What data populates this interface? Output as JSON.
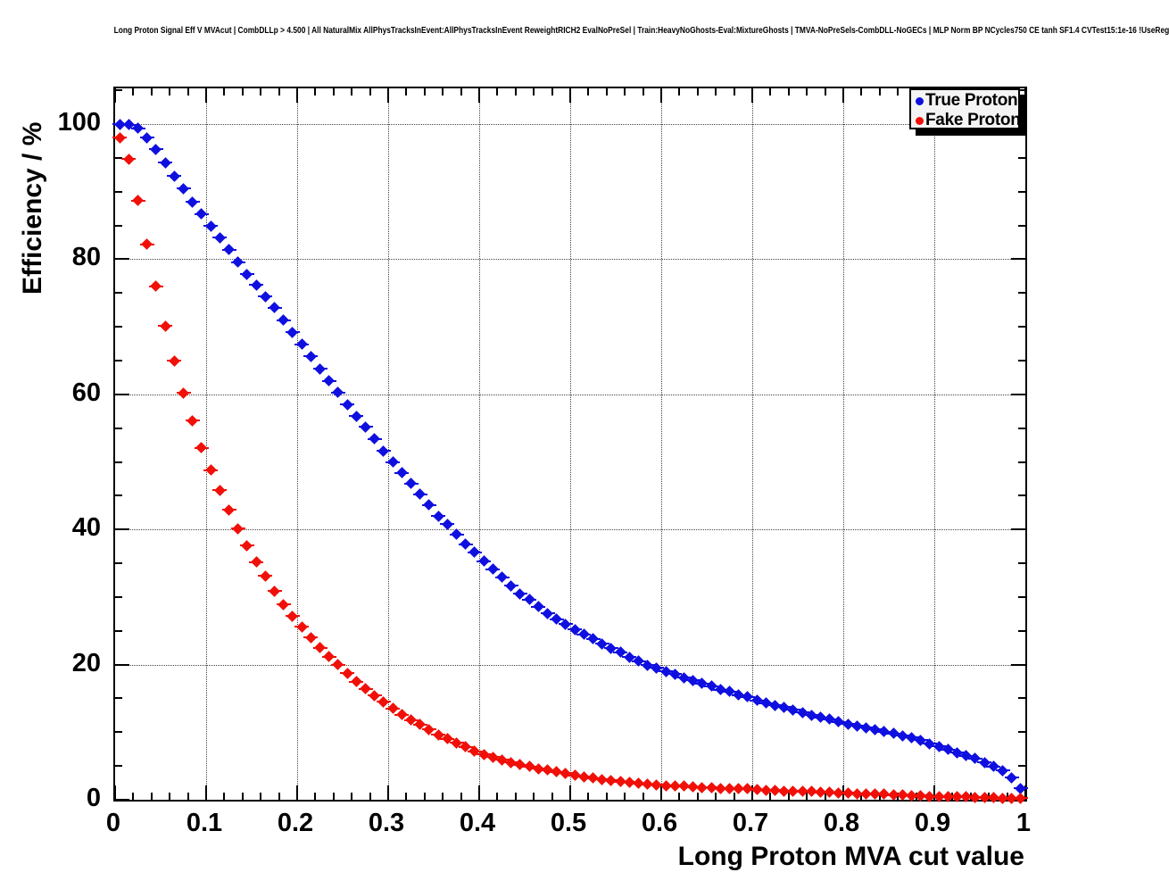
{
  "page_title": "Long Proton Signal Eff V MVAcut | CombDLLp > 4.500 | All NaturalMix AllPhysTracksInEvent:AllPhysTracksInEvent ReweightRICH2 EvalNoPreSel | Train:HeavyNoGhosts-Eval:MixtureGhosts | TMVA-NoPreSels-CombDLL-NoGECs | MLP Norm BP NCycles750 CE tanh SF1.4 CVTest15:1e-16 !UseReg",
  "legend": {
    "entries": [
      {
        "label": "True Proton",
        "color": "#0f0fe0"
      },
      {
        "label": "Fake Proton",
        "color": "#f01008"
      }
    ]
  },
  "colors": {
    "true_proton": "#0f0fe0",
    "fake_proton": "#f01008",
    "axis": "#000000",
    "grid": "#444444",
    "legend_bg": "#f4f4f4"
  },
  "chart_data": {
    "type": "scatter",
    "title": "Long Proton Signal Eff V MVAcut | CombDLLp > 4.500 | All NaturalMix AllPhysTracksInEvent:AllPhysTracksInEvent ReweightRICH2 EvalNoPreSel | Train:HeavyNoGhosts-Eval:MixtureGhosts | TMVA-NoPreSels-CombDLL-NoGECs | MLP Norm BP NCycles750 CE tanh SF1.4 CVTest15:1e-16 !UseReg",
    "xlabel": "Long Proton MVA cut value",
    "ylabel": "Efficiency / %",
    "xlim": [
      0,
      1
    ],
    "ylim": [
      0,
      105.3
    ],
    "x_major_ticks": [
      0,
      0.1,
      0.2,
      0.3,
      0.4,
      0.5,
      0.6,
      0.7,
      0.8,
      0.9,
      1
    ],
    "x_tick_labels": [
      "0",
      "0.1",
      "0.2",
      "0.3",
      "0.4",
      "0.5",
      "0.6",
      "0.7",
      "0.8",
      "0.9",
      "1"
    ],
    "y_major_ticks": [
      0,
      20,
      40,
      60,
      80,
      100
    ],
    "y_tick_labels": [
      "0",
      "20",
      "40",
      "60",
      "80",
      "100"
    ],
    "x_minor_step": 0.02,
    "y_minor_step": 5,
    "grid": "dotted",
    "legend_position": "top-right",
    "marker": "diamond",
    "x_error_halfwidth": 0.005,
    "x": [
      0.005,
      0.015,
      0.025,
      0.035,
      0.045,
      0.055,
      0.065,
      0.075,
      0.085,
      0.095,
      0.105,
      0.115,
      0.125,
      0.135,
      0.145,
      0.155,
      0.165,
      0.175,
      0.185,
      0.195,
      0.205,
      0.215,
      0.225,
      0.235,
      0.245,
      0.255,
      0.265,
      0.275,
      0.285,
      0.295,
      0.305,
      0.315,
      0.325,
      0.335,
      0.345,
      0.355,
      0.365,
      0.375,
      0.385,
      0.395,
      0.405,
      0.415,
      0.425,
      0.435,
      0.445,
      0.455,
      0.465,
      0.475,
      0.485,
      0.495,
      0.505,
      0.515,
      0.525,
      0.535,
      0.545,
      0.555,
      0.565,
      0.575,
      0.585,
      0.595,
      0.605,
      0.615,
      0.625,
      0.635,
      0.645,
      0.655,
      0.665,
      0.675,
      0.685,
      0.695,
      0.705,
      0.715,
      0.725,
      0.735,
      0.745,
      0.755,
      0.765,
      0.775,
      0.785,
      0.795,
      0.805,
      0.815,
      0.825,
      0.835,
      0.845,
      0.855,
      0.865,
      0.875,
      0.885,
      0.895,
      0.905,
      0.915,
      0.925,
      0.935,
      0.945,
      0.955,
      0.965,
      0.975,
      0.985,
      0.995
    ],
    "series": [
      {
        "name": "True Proton",
        "color": "#0f0fe0",
        "values": [
          100,
          99.9,
          99.4,
          98.0,
          96.3,
          94.3,
          92.3,
          90.5,
          88.5,
          86.7,
          84.9,
          83.2,
          81.4,
          79.6,
          77.8,
          76.2,
          74.5,
          72.8,
          71.0,
          69.2,
          67.4,
          65.6,
          63.8,
          62.0,
          60.3,
          58.5,
          56.8,
          55.2,
          53.4,
          51.6,
          50.0,
          48.4,
          46.8,
          45.2,
          43.6,
          42.0,
          40.8,
          39.3,
          37.8,
          36.6,
          35.3,
          34.1,
          32.9,
          31.7,
          30.5,
          29.6,
          28.6,
          27.6,
          26.7,
          26.0,
          25.2,
          24.5,
          23.8,
          23.1,
          22.4,
          21.8,
          21.1,
          20.5,
          19.9,
          19.5,
          19.0,
          18.6,
          18.1,
          17.7,
          17.2,
          16.8,
          16.3,
          16.0,
          15.5,
          15.2,
          14.7,
          14.3,
          14.0,
          13.7,
          13.3,
          12.9,
          12.5,
          12.2,
          11.9,
          11.5,
          11.2,
          10.9,
          10.7,
          10.4,
          10.1,
          9.8,
          9.5,
          9.2,
          8.8,
          8.3,
          7.9,
          7.4,
          7.0,
          6.5,
          6.1,
          5.5,
          4.9,
          4.3,
          3.3,
          1.7
        ]
      },
      {
        "name": "Fake Proton",
        "color": "#f01008",
        "values": [
          98.0,
          94.8,
          88.7,
          82.2,
          76.0,
          70.1,
          65.0,
          60.2,
          56.1,
          52.1,
          48.8,
          45.8,
          42.9,
          40.1,
          37.6,
          35.2,
          33.1,
          30.9,
          28.9,
          27.2,
          25.6,
          24.0,
          22.5,
          21.2,
          20.0,
          18.7,
          17.5,
          16.4,
          15.4,
          14.5,
          13.5,
          12.6,
          11.8,
          11.1,
          10.4,
          9.6,
          9.0,
          8.4,
          7.8,
          7.2,
          6.7,
          6.3,
          5.9,
          5.5,
          5.2,
          4.9,
          4.6,
          4.4,
          4.1,
          3.9,
          3.6,
          3.4,
          3.2,
          3.0,
          2.9,
          2.7,
          2.6,
          2.4,
          2.3,
          2.2,
          2.1,
          2.0,
          2.0,
          1.9,
          1.8,
          1.8,
          1.7,
          1.7,
          1.6,
          1.6,
          1.5,
          1.4,
          1.4,
          1.3,
          1.3,
          1.2,
          1.2,
          1.1,
          1.1,
          1.0,
          1.0,
          0.9,
          0.9,
          0.8,
          0.8,
          0.7,
          0.7,
          0.6,
          0.6,
          0.5,
          0.5,
          0.45,
          0.4,
          0.4,
          0.35,
          0.3,
          0.3,
          0.25,
          0.2,
          0.2
        ]
      }
    ]
  }
}
